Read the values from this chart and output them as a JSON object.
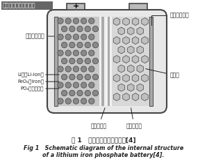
{
  "title_cn": "磷酸铁锂电池内部结构",
  "caption_cn": "图 1   磷酸铁锂电池内部结构",
  "caption_ref": "[4]",
  "caption_en1": "Fig 1   Schematic diagram of the internal structure",
  "caption_en2": "of a lithium iron phosphate battery",
  "caption_en_ref": "[4]",
  "bg_color": "#ffffff",
  "outline_color": "#444444",
  "label_color": "#222222",
  "title_bg": "#666666",
  "title_text_color": "#ffffff",
  "body_face": "#e8e8e8",
  "lfp_face": "#c8c8c8",
  "dot_face": "#888888",
  "dot_edge": "#444444",
  "sep_face": "#f0f0f0",
  "sep_line": "#bbbbbb",
  "gr_face": "#d8d8d8",
  "hex_face": "#c0c0c0",
  "hex_edge": "#444444",
  "col_face": "#aaaaaa",
  "col_edge": "#555555",
  "term_face": "#bbbbbb"
}
